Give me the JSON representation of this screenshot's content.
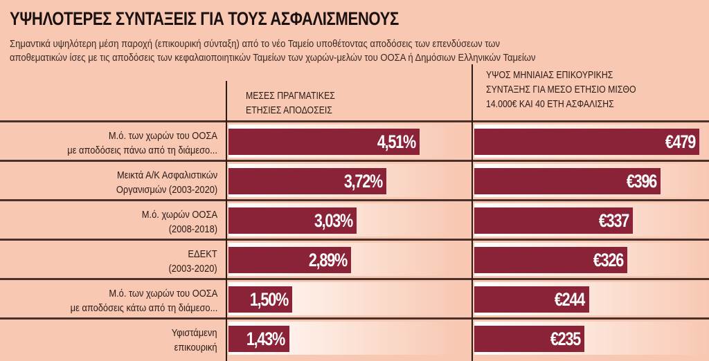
{
  "title": "ΥΨΗΛΟΤΕΡΕΣ ΣΥΝΤΑΞΕΙΣ ΓΙΑ ΤΟΥΣ ΑΣΦΑΛΙΣΜΕΝΟΥΣ",
  "subtitle": "Σημαντικά υψηλότερη μέση παροχή (επικουρική σύνταξη) από το νέο Ταμείο υποθέτοντας αποδόσεις των επενδύσεων των αποθεματικών ίσες με τις αποδόσεις των κεφαλαιοποιητικών Ταμείων των χωρών-μελών του ΟΟΣΑ ή Δημόσιων Ελληνικών Ταμείων",
  "colors": {
    "background": "#f8c8b3",
    "bar": "#8a2238"
  },
  "chart_data": [
    {
      "type": "bar",
      "orientation": "horizontal",
      "title": "ΜΕΣΕΣ ΠΡΑΓΜΑΤΙΚΕΣ ΕΤΗΣΙΕΣ ΑΠΟΔΟΣΕΙΣ",
      "categories": [
        "Μ.ό. των χωρών του ΟΟΣΑ με αποδόσεις πάνω από τη διάμεσο...",
        "Μεικτά Α/Κ Ασφαλιστικών Οργανισμών (2003-2020)",
        "Μ.ό. χωρών ΟΟΣΑ (2008-2018)",
        "ΕΔΕΚΤ (2003-2020)",
        "Μ.ό. των χωρών του ΟΟΣΑ με αποδόσεις κάτω από τη διάμεσο...",
        "Υφιστάμενη επικουρική"
      ],
      "values": [
        4.51,
        3.72,
        3.03,
        2.89,
        1.5,
        1.43
      ],
      "data_labels": [
        "4,51%",
        "3,72%",
        "3,03%",
        "2,89%",
        "1,50%",
        "1,43%"
      ]
    },
    {
      "type": "bar",
      "orientation": "horizontal",
      "title": "ΥΨΟΣ ΜΗΝΙΑΙΑΣ ΕΠΙΚΟΥΡΙΚΗΣ ΣΥΝΤΑΞΗΣ ΓΙΑ ΜΕΣΟ ΕΤΗΣΙΟ ΜΙΣΘΟ 14.000€ ΚΑΙ 40 ΕΤΗ ΑΣΦΑΛΙΣΗΣ",
      "values": [
        479,
        396,
        337,
        326,
        244,
        235
      ],
      "data_labels": [
        "€479",
        "€396",
        "€337",
        "€326",
        "€244",
        "€235"
      ]
    }
  ],
  "rows": [
    {
      "label1": "Μ.ό. των χωρών του ΟΟΣΑ",
      "label2": "με αποδόσεις πάνω από τη διάμεσο..."
    },
    {
      "label1": "Μεικτά Α/Κ Ασφαλιστικών",
      "label2": "Οργανισμών (2003-2020)"
    },
    {
      "label1": "Μ.ό. χωρών ΟΟΣΑ",
      "label2": "(2008-2018)"
    },
    {
      "label1": "ΕΔΕΚΤ",
      "label2": "(2003-2020)"
    },
    {
      "label1": "Μ.ό. των χωρών του ΟΟΣΑ",
      "label2": "με αποδόσεις κάτω από τη διάμεσο..."
    },
    {
      "label1": "Υφιστάμενη",
      "label2": "επικουρική"
    }
  ],
  "headers": {
    "col1": [
      "ΜΕΣΕΣ ΠΡΑΓΜΑΤΙΚΕΣ",
      "ΕΤΗΣΙΕΣ ΑΠΟΔΟΣΕΙΣ"
    ],
    "col2": [
      "ΥΨΟΣ ΜΗΝΙΑΙΑΣ ΕΠΙΚΟΥΡΙΚΗΣ",
      "ΣΥΝΤΑΞΗΣ ΓΙΑ ΜΕΣΟ ΕΤΗΣΙΟ ΜΙΣΘΟ",
      "14.000€ ΚΑΙ 40 ΕΤΗ ΑΣΦΑΛΙΣΗΣ"
    ]
  }
}
